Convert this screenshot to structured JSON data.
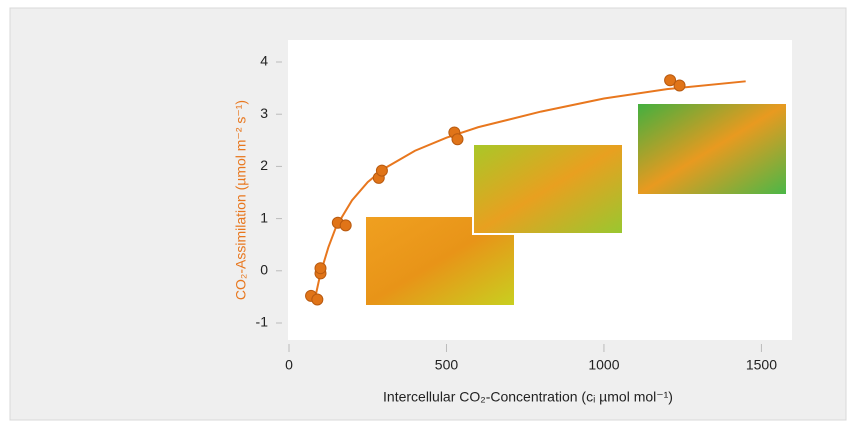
{
  "chart_data": {
    "type": "scatter",
    "xlabel": "Intercellular CO₂-Concentration (cᵢ µmol mol⁻¹)",
    "ylabel": "CO₂-Assimilation (µmol m⁻² s⁻¹)",
    "xlim": [
      0,
      1525
    ],
    "ylim": [
      -1,
      4
    ],
    "xticks": [
      0,
      500,
      1000,
      1500
    ],
    "yticks": [
      -1,
      0,
      1,
      2,
      3,
      4
    ],
    "label_color": "#e8771e",
    "series": [
      {
        "type": "scatter",
        "color": "#e07418",
        "x": [
          70,
          90,
          100,
          100,
          155,
          180,
          285,
          295,
          525,
          535,
          1210,
          1240
        ],
        "values": [
          -0.48,
          -0.55,
          -0.05,
          0.05,
          0.92,
          0.87,
          1.78,
          1.92,
          2.65,
          2.52,
          3.65,
          3.55
        ]
      },
      {
        "type": "line",
        "color": "#e8771e",
        "x": [
          80,
          100,
          125,
          150,
          200,
          250,
          300,
          400,
          500,
          600,
          800,
          1000,
          1200,
          1450
        ],
        "values": [
          -0.6,
          -0.05,
          0.45,
          0.85,
          1.35,
          1.7,
          1.95,
          2.3,
          2.55,
          2.75,
          3.05,
          3.3,
          3.48,
          3.63
        ]
      }
    ]
  }
}
